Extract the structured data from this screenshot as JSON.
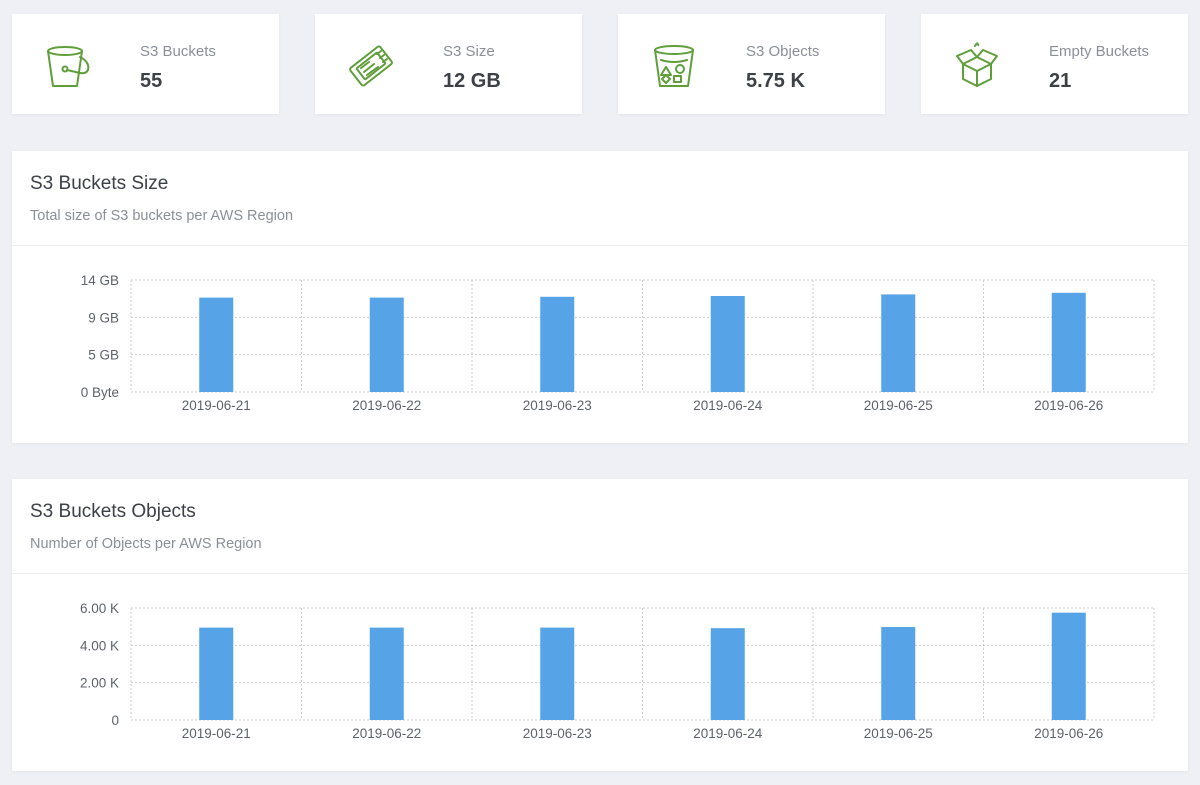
{
  "stats": [
    {
      "label": "S3 Buckets",
      "value": "55",
      "icon": "bucket-icon"
    },
    {
      "label": "S3 Size",
      "value": "12 GB",
      "icon": "storage-ticket-icon"
    },
    {
      "label": "S3 Objects",
      "value": "5.75 K",
      "icon": "bucket-objects-icon"
    },
    {
      "label": "Empty Buckets",
      "value": "21",
      "icon": "open-box-icon"
    }
  ],
  "colors": {
    "icon": "#5f9e3a",
    "bar": "#56a3e7",
    "grid": "#c9ccd1"
  },
  "panels": [
    {
      "title": "S3 Buckets Size",
      "subtitle": "Total size of S3 buckets per AWS Region",
      "chart_data": {
        "type": "bar",
        "categories": [
          "2019-06-21",
          "2019-06-22",
          "2019-06-23",
          "2019-06-24",
          "2019-06-25",
          "2019-06-26"
        ],
        "values": [
          11.8,
          11.8,
          11.9,
          12.0,
          12.2,
          12.4
        ],
        "unit": "GB",
        "yticks": [
          0,
          4.67,
          9.33,
          14
        ],
        "ytick_labels": [
          "0 Byte",
          "5 GB",
          "9 GB",
          "14 GB"
        ],
        "ylim": [
          0,
          14
        ],
        "grid": true
      }
    },
    {
      "title": "S3 Buckets Objects",
      "subtitle": "Number of Objects per AWS Region",
      "chart_data": {
        "type": "bar",
        "categories": [
          "2019-06-21",
          "2019-06-22",
          "2019-06-23",
          "2019-06-24",
          "2019-06-25",
          "2019-06-26"
        ],
        "values": [
          4.95,
          4.95,
          4.95,
          4.92,
          4.98,
          5.75
        ],
        "unit": "K",
        "yticks": [
          0,
          2,
          4,
          6
        ],
        "ytick_labels": [
          "0",
          "2.00 K",
          "4.00 K",
          "6.00 K"
        ],
        "ylim": [
          0,
          6
        ],
        "grid": true
      }
    }
  ]
}
